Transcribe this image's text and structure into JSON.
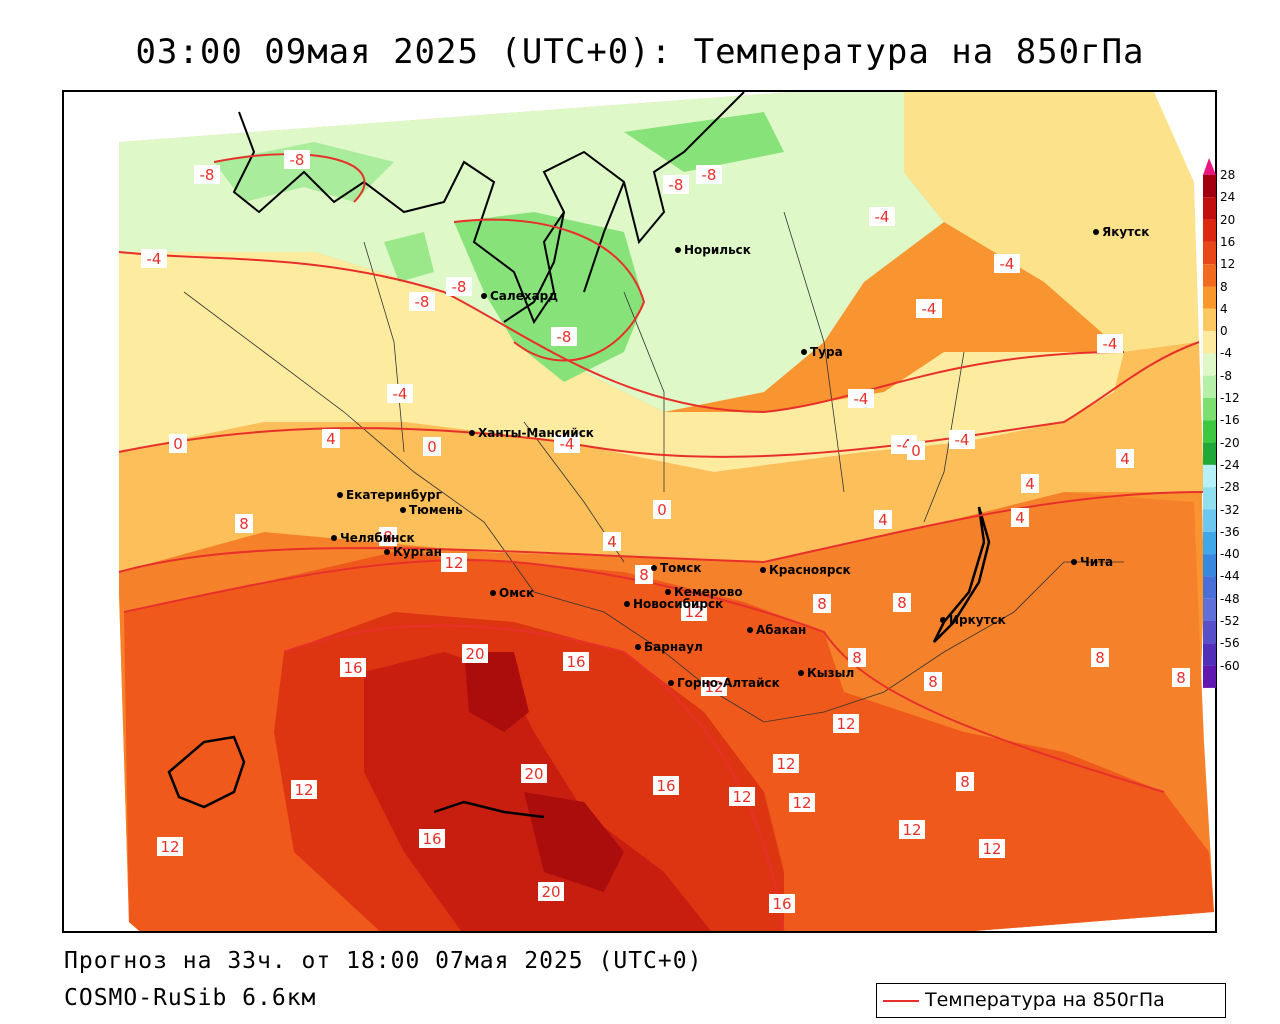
{
  "title": "03:00 09мая 2025 (UTC+0): Температура на 850гПа",
  "footer": {
    "forecast": "Прогноз на 33ч. от 18:00 07мая 2025 (UTC+0)",
    "model": "COSMO-RuSib 6.6км"
  },
  "legend": {
    "label": "Температура на 850гПа",
    "line_color": "#e8302a"
  },
  "scale": {
    "labels": [
      "28",
      "24",
      "20",
      "16",
      "12",
      "8",
      "4",
      "0",
      "-4",
      "-8",
      "-12",
      "-16",
      "-20",
      "-24",
      "-28",
      "-32",
      "-36",
      "-40",
      "-44",
      "-48",
      "-52",
      "-56",
      "-60"
    ],
    "colors": [
      "#a00010",
      "#c21010",
      "#dc2810",
      "#e84818",
      "#f06a20",
      "#f8982c",
      "#fdc860",
      "#fdeaa0",
      "#dff8c8",
      "#b4f0a8",
      "#7ce070",
      "#3cc840",
      "#20a838",
      "#b8f0f8",
      "#90e0f0",
      "#6cc8f0",
      "#40a8e8",
      "#3888e0",
      "#4870d8",
      "#6070d8",
      "#5850c8",
      "#5030b8",
      "#6018b0"
    ],
    "top_color": "#e81880",
    "bottom_color": "#8020c0"
  },
  "cities": [
    {
      "name": "Якутск"
    },
    {
      "name": "Норильск"
    },
    {
      "name": "Салехард"
    },
    {
      "name": "Тура"
    },
    {
      "name": "Ханты-Мансийск"
    },
    {
      "name": "Екатеринбург"
    },
    {
      "name": "Тюмень"
    },
    {
      "name": "Челябинск"
    },
    {
      "name": "Курган"
    },
    {
      "name": "Омск"
    },
    {
      "name": "Новосибирск"
    },
    {
      "name": "Томск"
    },
    {
      "name": "Кемерово"
    },
    {
      "name": "Красноярск"
    },
    {
      "name": "Абакан"
    },
    {
      "name": "Барнаул"
    },
    {
      "name": "Горно-Алтайск"
    },
    {
      "name": "Кызыл"
    },
    {
      "name": "Иркутск"
    },
    {
      "name": "Чита"
    }
  ],
  "contour_labels": [
    "-8",
    "-8",
    "-8",
    "-8",
    "-8",
    "-8",
    "-8",
    "-4",
    "-4",
    "-4",
    "-4",
    "-4",
    "-4",
    "-4",
    "-4",
    "-4",
    "0",
    "0",
    "0",
    "0",
    "4",
    "4",
    "4",
    "4",
    "4",
    "8",
    "8",
    "8",
    "8",
    "8",
    "8",
    "8",
    "8",
    "8",
    "12",
    "12",
    "12",
    "12",
    "12",
    "12",
    "12",
    "12",
    "12",
    "12",
    "12",
    "16",
    "16",
    "16",
    "16",
    "16",
    "20",
    "20",
    "20",
    "-4",
    "4",
    "8"
  ]
}
